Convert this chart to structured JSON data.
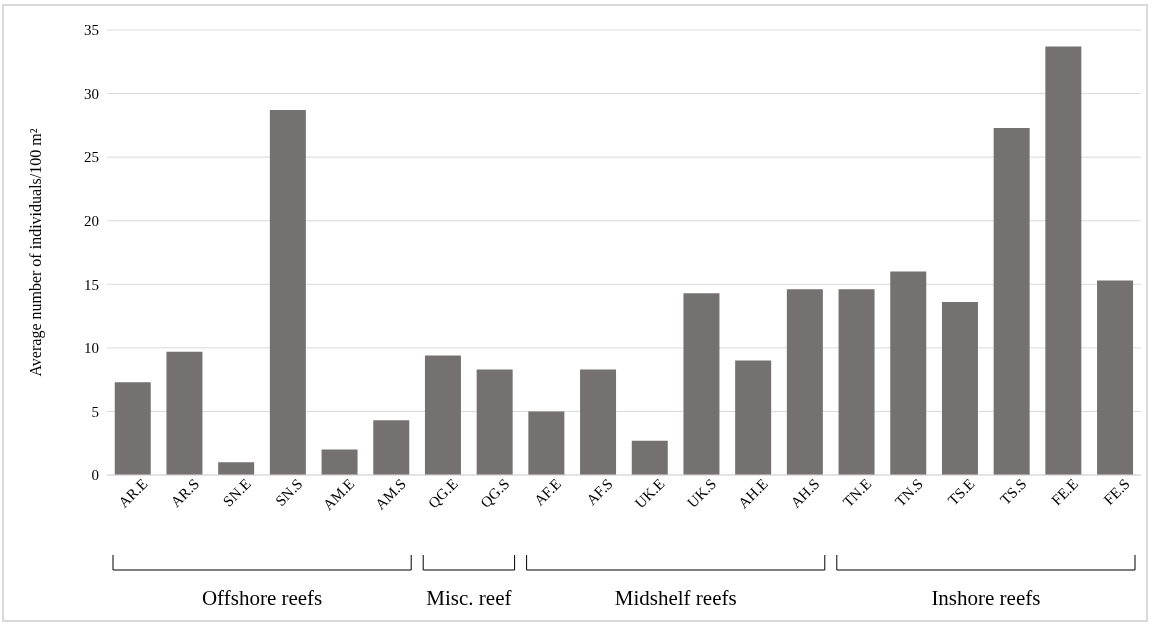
{
  "chart_data": {
    "type": "bar",
    "ylabel": "Average number of individuals/100 m²",
    "categories": [
      "AR.E",
      "AR.S",
      "SN.E",
      "SN.S",
      "AM.E",
      "AM.S",
      "QG.E",
      "QG.S",
      "AF.E",
      "AF.S",
      "UK.E",
      "UK.S",
      "AH.E",
      "AH.S",
      "TN.E",
      "TN.S",
      "TS.E",
      "TS.S",
      "FE.E",
      "FE.S"
    ],
    "values": [
      7.3,
      9.7,
      1.0,
      28.7,
      2.0,
      4.3,
      9.4,
      8.3,
      5.0,
      8.3,
      2.7,
      14.3,
      9.0,
      14.6,
      14.6,
      16.0,
      13.6,
      27.3,
      33.7,
      15.3
    ],
    "color": "#767171",
    "ylim": [
      0,
      35
    ],
    "yticks": [
      0,
      5,
      10,
      15,
      20,
      25,
      30,
      35
    ],
    "grid": "y",
    "annotations": [
      "Offshore reefs",
      "Misc. reef",
      "Midshelf reefs",
      "Inshore reefs"
    ]
  }
}
